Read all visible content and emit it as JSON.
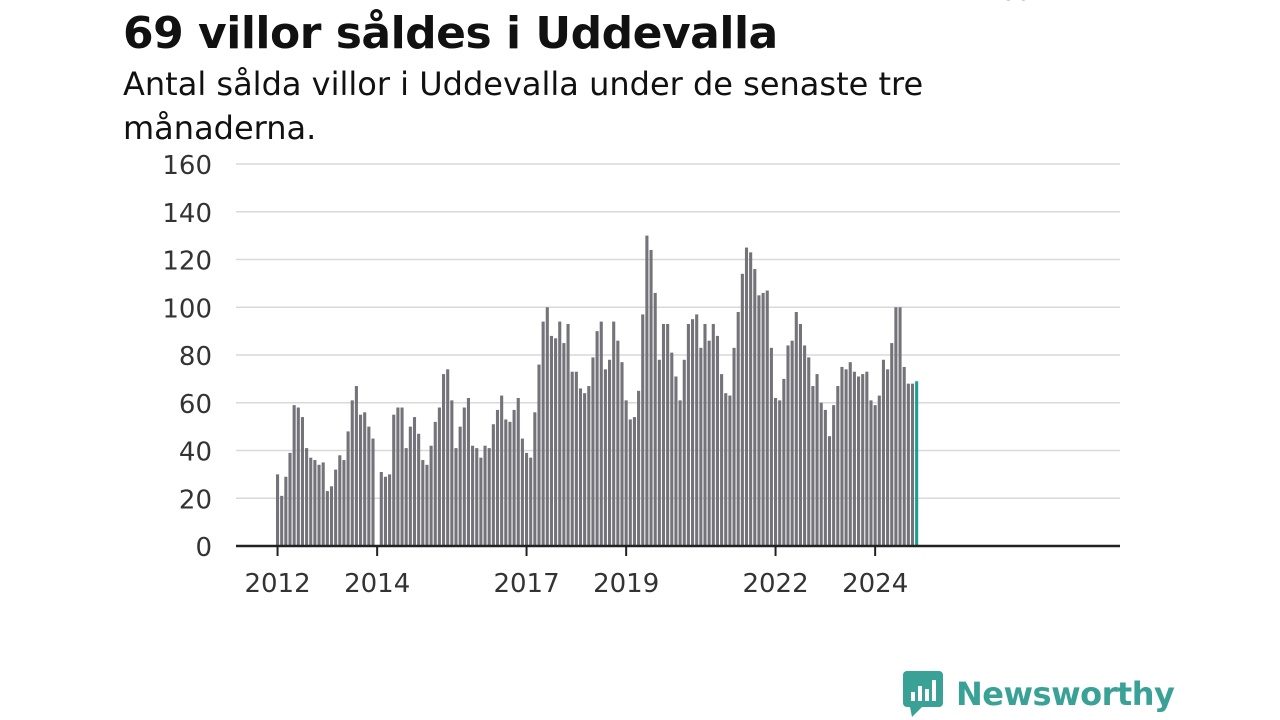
{
  "header": {
    "title": "69 villor såldes i Uddevalla",
    "subtitle": "Antal sålda villor i Uddevalla under de senaste tre månaderna."
  },
  "brand": {
    "name": "Newsworthy",
    "color": "#3aa197",
    "icon": "bar-chart-speech-bubble-icon"
  },
  "colors": {
    "bar": "#74737a",
    "highlight": "#1a9e94",
    "grid": "#d9d9d9",
    "axis": "#222222",
    "text": "#333333"
  },
  "chart_data": {
    "type": "bar",
    "title": "69 villor såldes i Uddevalla",
    "subtitle": "Antal sålda villor i Uddevalla under de senaste tre månaderna.",
    "xlabel": "",
    "ylabel": "",
    "ylim": [
      0,
      160
    ],
    "yticks": [
      0,
      20,
      40,
      60,
      80,
      100,
      120,
      140,
      160
    ],
    "grid": true,
    "x_tick_labels": [
      {
        "label": "2012",
        "at": 0
      },
      {
        "label": "2014",
        "at": 24
      },
      {
        "label": "2017",
        "at": 60
      },
      {
        "label": "2019",
        "at": 84
      },
      {
        "label": "2022",
        "at": 120
      },
      {
        "label": "2024",
        "at": 144
      }
    ],
    "values": [
      30,
      21,
      29,
      39,
      59,
      58,
      54,
      41,
      37,
      36,
      34,
      35,
      23,
      25,
      32,
      38,
      36,
      48,
      61,
      67,
      55,
      56,
      50,
      45,
      0,
      31,
      29,
      30,
      55,
      58,
      58,
      41,
      50,
      54,
      47,
      36,
      34,
      42,
      52,
      58,
      72,
      74,
      61,
      41,
      50,
      58,
      62,
      42,
      41,
      37,
      42,
      41,
      51,
      57,
      63,
      53,
      52,
      57,
      62,
      45,
      39,
      37,
      56,
      76,
      94,
      100,
      88,
      87,
      94,
      85,
      93,
      73,
      73,
      66,
      64,
      67,
      79,
      90,
      94,
      74,
      78,
      94,
      86,
      77,
      61,
      53,
      54,
      65,
      97,
      130,
      124,
      106,
      78,
      93,
      93,
      81,
      71,
      61,
      78,
      93,
      95,
      97,
      83,
      93,
      86,
      93,
      88,
      72,
      64,
      63,
      83,
      98,
      114,
      125,
      123,
      116,
      105,
      106,
      107,
      83,
      62,
      61,
      70,
      84,
      86,
      98,
      93,
      84,
      79,
      67,
      72,
      60,
      57,
      46,
      59,
      67,
      75,
      74,
      77,
      73,
      71,
      72,
      73,
      61,
      59,
      63,
      78,
      74,
      85,
      100,
      100,
      75,
      68,
      68,
      69
    ],
    "highlight_last": true,
    "annotation": {
      "text": "69",
      "index": 178
    }
  }
}
